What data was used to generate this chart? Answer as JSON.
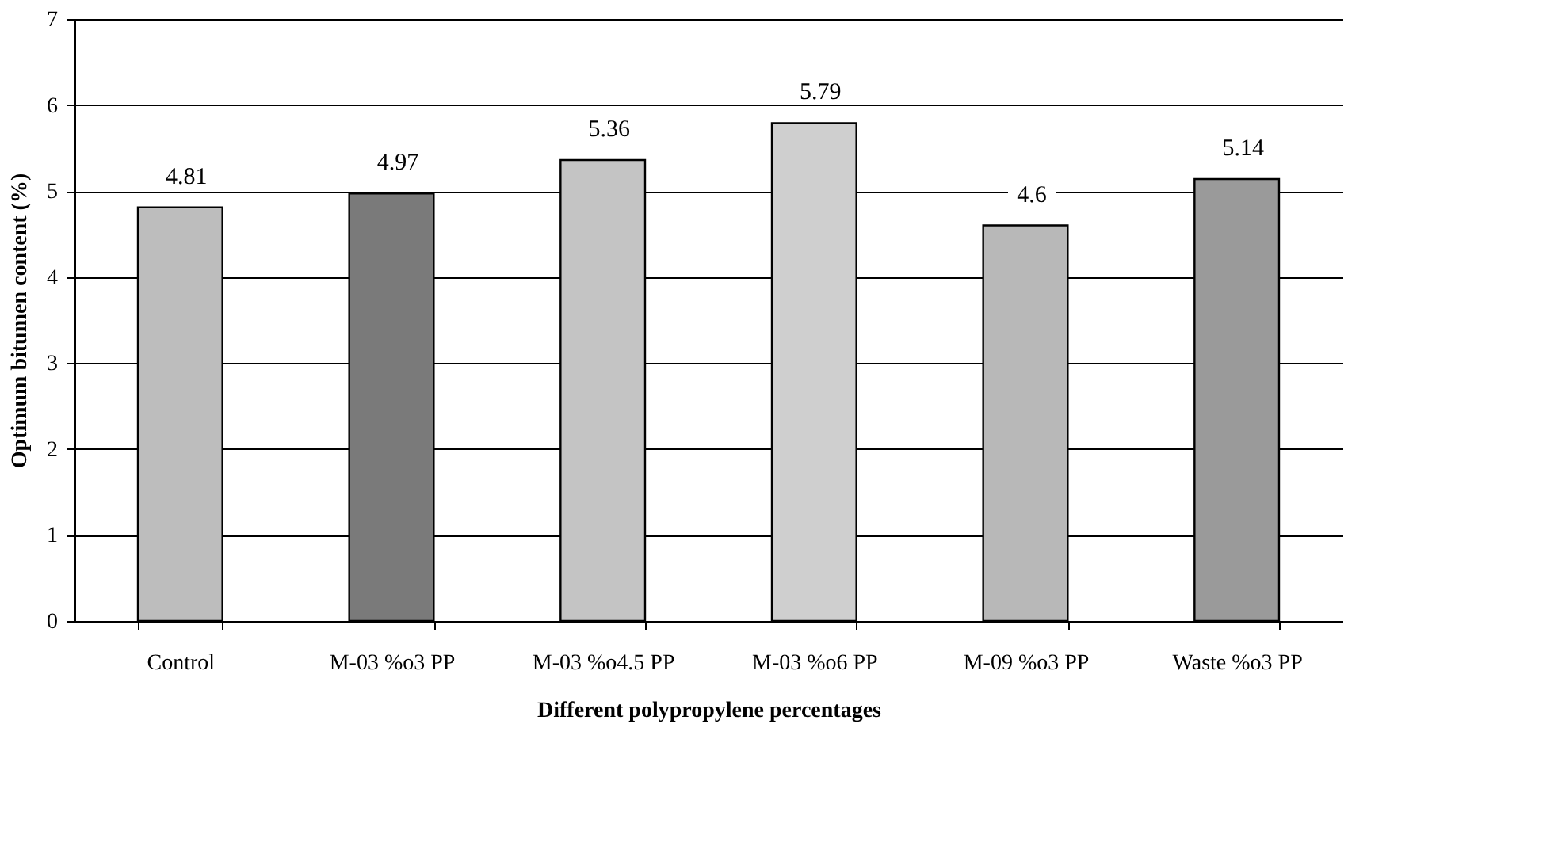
{
  "chart_data": {
    "type": "bar",
    "xlabel": "Different polypropylene percentages",
    "ylabel": "Optimum bitumen content (%)",
    "categories": [
      "Control",
      "M-03 %o3 PP",
      "M-03 %o4.5 PP",
      "M-03 %o6 PP",
      "M-09 %o3 PP",
      "Waste %o3 PP"
    ],
    "values": [
      4.81,
      4.97,
      5.36,
      5.79,
      4.6,
      5.14
    ],
    "colors": [
      "#bdbdbd",
      "#7a7a7a",
      "#c4c4c4",
      "#cfcfcf",
      "#b8b8b8",
      "#9a9a9a"
    ],
    "ylim": [
      0,
      7
    ],
    "yticks": [
      0,
      1,
      2,
      3,
      4,
      5,
      6,
      7
    ],
    "grid": "y",
    "data_labels": true
  }
}
